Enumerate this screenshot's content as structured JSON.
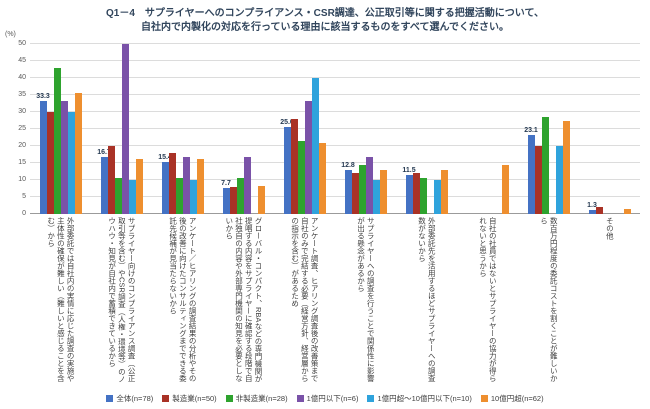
{
  "title": {
    "line1": "Q1－4　サプライヤーへのコンプライアンス・CSR調達、公正取引等に関する把握活動について、",
    "line2": "自社内で内製化の対応を行っている理由に該当するものをすべて選んでください。"
  },
  "colors": {
    "title": "#31455C",
    "data_label": "#263A52",
    "axis_text": "#595959",
    "category_text": "#404040",
    "grid": "#DCDCDC"
  },
  "chart_data": {
    "type": "bar",
    "title": "Q1－4 サプライヤーへのコンプライアンス・CSR調達、公正取引等に関する把握活動について、自社内で内製化の対応を行っている理由に該当するものをすべて選んでください。",
    "ylabel": "(%)",
    "ylim": [
      0,
      50
    ],
    "ytick_step": 5,
    "grid": true,
    "legend_position": "bottom",
    "categories": [
      "外部委託では自社内の実情に応じた調査の実施や主体性の確保が難しい（難しいと感じることを含む）から",
      "サプライヤー向けのコンプライアンス調査（公正取引等を含む）やCSR調査（人権・環境等）のノウハウ・知見が自社内で蓄積できているから",
      "アンケート／ヒアリングの調査結果の分析やその後の改善に向けたコンサルティングまでできる委託先候補が見当たらないから",
      "グローバル・コンパクト、RBAなどの専門機関が提唱する内容をサプライヤーに確認する段階で自社独自の内容や外部専門機関の知見を必要としないから",
      "アンケート調査、ヒアリング調査後の改善策まで自社のみで完結する必要（経営方針、経営層からの指示を含む）があるため",
      "サプライヤーへの調査を行うことで関係性に影響が出る懸念があるから",
      "外部委託先を活用するほどサプライヤーへの調査数がないから",
      "自社の社員ではないとサプライヤーの協力が得られないと思うから",
      "数百万円程度の委託コストを割くことが難しいから",
      "その他"
    ],
    "series": [
      {
        "name": "全体(n=78)",
        "color": "#4472C4",
        "data_labels": true,
        "values": [
          33.3,
          16.7,
          15.4,
          7.7,
          25.6,
          12.8,
          11.5,
          0,
          23.1,
          1.3
        ]
      },
      {
        "name": "製造業(n=50)",
        "color": "#A93226",
        "values": [
          30.0,
          20.0,
          18.0,
          8.0,
          28.0,
          12.0,
          12.0,
          0,
          20.0,
          2.0
        ]
      },
      {
        "name": "非製造業(n=28)",
        "color": "#2EA32E",
        "values": [
          42.9,
          10.7,
          10.7,
          10.7,
          21.4,
          14.3,
          10.7,
          0,
          28.6,
          0
        ]
      },
      {
        "name": "1億円以下(n=6)",
        "color": "#7A52A8",
        "values": [
          33.3,
          50.0,
          16.7,
          16.7,
          33.3,
          16.7,
          0,
          0,
          0,
          0
        ]
      },
      {
        "name": "1億円超～10億円以下(n=10)",
        "color": "#2FA3DC",
        "values": [
          30.0,
          10.0,
          10.0,
          0,
          40.0,
          10.0,
          10.0,
          0,
          20.0,
          0
        ]
      },
      {
        "name": "10億円超(n=62)",
        "color": "#EE8F2F",
        "values": [
          35.5,
          16.1,
          16.1,
          8.1,
          21.0,
          12.9,
          12.9,
          14.5,
          27.4,
          1.6
        ]
      }
    ]
  }
}
